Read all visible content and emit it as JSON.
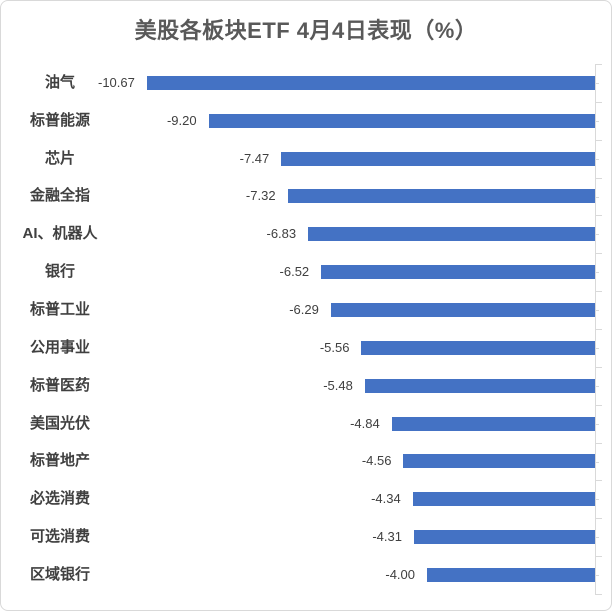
{
  "title": "美股各板块ETF 4月4日表现（%）",
  "colors": {
    "bar": "#4472C4",
    "title_text": "#595959",
    "label_text": "#404040",
    "axis_line": "#D9D9D9",
    "frame_border": "#D9D9D9",
    "background": "#FFFFFF"
  },
  "chart_data": {
    "type": "bar",
    "orientation": "horizontal",
    "title": "美股各板块ETF 4月4日表现（%）",
    "xlabel": "",
    "ylabel": "",
    "categories": [
      "油气",
      "标普能源",
      "芯片",
      "金融全指",
      "AI、机器人",
      "银行",
      "标普工业",
      "公用事业",
      "标普医药",
      "美国光伏",
      "标普地产",
      "必选消费",
      "可选消费",
      "区域银行"
    ],
    "values": [
      -10.67,
      -9.2,
      -7.47,
      -7.32,
      -6.83,
      -6.52,
      -6.29,
      -5.56,
      -5.48,
      -4.84,
      -4.56,
      -4.34,
      -4.31,
      -4.0
    ],
    "value_labels": [
      "-10.67",
      "-9.20",
      "-7.47",
      "-7.32",
      "-6.83",
      "-6.52",
      "-6.29",
      "-5.56",
      "-5.48",
      "-4.84",
      "-4.56",
      "-4.34",
      "-4.31",
      "-4.00"
    ],
    "xlim": [
      -11,
      0
    ],
    "grid": false,
    "legend": null,
    "value_axis_side": "right",
    "data_label_position": "outside-end"
  }
}
